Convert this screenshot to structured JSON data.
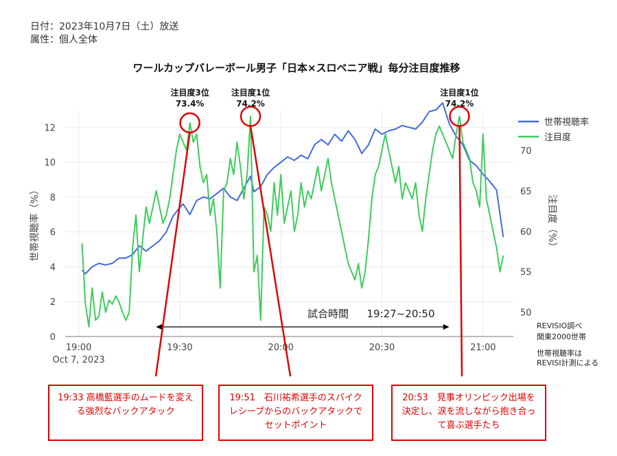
{
  "header": {
    "date_line": "日付：2023年10月7日（土）放送",
    "attr_line": "属性：個人全体"
  },
  "chart_data": {
    "type": "line",
    "title": "ワールカップバレーボール男子「日本×スロベニア戦」毎分注目度推移",
    "x_ticks": [
      "19:00",
      "19:30",
      "20:00",
      "20:30",
      "21:00"
    ],
    "x_date_label": "Oct 7, 2023",
    "x_range": [
      "18:56",
      "21:09"
    ],
    "ylabel_left": "世帯視聴率（%）",
    "ylabel_right": "注目度（%）",
    "ylim_left": [
      0,
      13
    ],
    "ylim_right": [
      47,
      75
    ],
    "yticks_left": [
      0,
      2,
      4,
      6,
      8,
      10,
      12
    ],
    "yticks_right": [
      50,
      55,
      60,
      65,
      70
    ],
    "legend_position": "top-right",
    "grid": true,
    "series": [
      {
        "name": "世帯視聴率",
        "axis": "left",
        "color": "#4169e1",
        "points": [
          [
            "19:01",
            3.8
          ],
          [
            "19:02",
            3.6
          ],
          [
            "19:04",
            4.0
          ],
          [
            "19:06",
            4.2
          ],
          [
            "19:08",
            4.1
          ],
          [
            "19:10",
            4.2
          ],
          [
            "19:12",
            4.5
          ],
          [
            "19:14",
            4.5
          ],
          [
            "19:16",
            4.7
          ],
          [
            "19:18",
            5.2
          ],
          [
            "19:20",
            4.9
          ],
          [
            "19:22",
            5.2
          ],
          [
            "19:24",
            5.5
          ],
          [
            "19:26",
            6.0
          ],
          [
            "19:28",
            6.9
          ],
          [
            "19:30",
            7.4
          ],
          [
            "19:31",
            7.6
          ],
          [
            "19:33",
            7.0
          ],
          [
            "19:35",
            7.8
          ],
          [
            "19:37",
            8.0
          ],
          [
            "19:39",
            7.9
          ],
          [
            "19:41",
            8.2
          ],
          [
            "19:43",
            8.5
          ],
          [
            "19:45",
            8.0
          ],
          [
            "19:47",
            7.8
          ],
          [
            "19:49",
            8.5
          ],
          [
            "19:51",
            9.2
          ],
          [
            "19:52",
            8.3
          ],
          [
            "19:54",
            8.6
          ],
          [
            "19:56",
            9.3
          ],
          [
            "19:58",
            9.7
          ],
          [
            "20:00",
            10.0
          ],
          [
            "20:02",
            10.3
          ],
          [
            "20:04",
            10.1
          ],
          [
            "20:06",
            10.4
          ],
          [
            "20:08",
            10.2
          ],
          [
            "20:10",
            11.0
          ],
          [
            "20:12",
            11.3
          ],
          [
            "20:14",
            11.0
          ],
          [
            "20:16",
            11.6
          ],
          [
            "20:18",
            11.2
          ],
          [
            "20:20",
            11.8
          ],
          [
            "20:22",
            11.3
          ],
          [
            "20:24",
            10.5
          ],
          [
            "20:26",
            11.0
          ],
          [
            "20:28",
            11.9
          ],
          [
            "20:30",
            11.6
          ],
          [
            "20:32",
            11.8
          ],
          [
            "20:34",
            11.9
          ],
          [
            "20:36",
            12.1
          ],
          [
            "20:38",
            12.0
          ],
          [
            "20:40",
            11.9
          ],
          [
            "20:42",
            12.3
          ],
          [
            "20:44",
            12.9
          ],
          [
            "20:46",
            13.0
          ],
          [
            "20:48",
            13.4
          ],
          [
            "20:50",
            12.2
          ],
          [
            "20:52",
            11.5
          ],
          [
            "20:54",
            11.0
          ],
          [
            "20:56",
            10.1
          ],
          [
            "20:58",
            9.8
          ],
          [
            "21:00",
            9.3
          ],
          [
            "21:02",
            8.9
          ],
          [
            "21:04",
            8.4
          ],
          [
            "21:06",
            5.7
          ]
        ]
      },
      {
        "name": "注目度",
        "axis": "right",
        "color": "#3ccc5a",
        "points": [
          [
            "19:01",
            58.5
          ],
          [
            "19:02",
            51.0
          ],
          [
            "19:03",
            48.2
          ],
          [
            "19:04",
            53.0
          ],
          [
            "19:05",
            49.0
          ],
          [
            "19:06",
            49.5
          ],
          [
            "19:07",
            52.5
          ],
          [
            "19:08",
            50.0
          ],
          [
            "19:09",
            51.5
          ],
          [
            "19:10",
            51.0
          ],
          [
            "19:11",
            52.0
          ],
          [
            "19:12",
            51.2
          ],
          [
            "19:13",
            50.0
          ],
          [
            "19:14",
            49.0
          ],
          [
            "19:15",
            50.0
          ],
          [
            "19:16",
            58.0
          ],
          [
            "19:17",
            62.0
          ],
          [
            "19:18",
            55.0
          ],
          [
            "19:19",
            59.0
          ],
          [
            "19:20",
            63.0
          ],
          [
            "19:21",
            61.0
          ],
          [
            "19:22",
            63.0
          ],
          [
            "19:23",
            65.0
          ],
          [
            "19:24",
            63.0
          ],
          [
            "19:25",
            61.0
          ],
          [
            "19:26",
            62.0
          ],
          [
            "19:27",
            64.0
          ],
          [
            "19:28",
            67.0
          ],
          [
            "19:29",
            70.0
          ],
          [
            "19:30",
            72.0
          ],
          [
            "19:31",
            71.0
          ],
          [
            "19:32",
            70.0
          ],
          [
            "19:33",
            73.4
          ],
          [
            "19:34",
            71.0
          ],
          [
            "19:35",
            72.0
          ],
          [
            "19:36",
            68.0
          ],
          [
            "19:37",
            66.0
          ],
          [
            "19:38",
            67.0
          ],
          [
            "19:39",
            62.0
          ],
          [
            "19:40",
            64.0
          ],
          [
            "19:41",
            60.0
          ],
          [
            "19:42",
            53.0
          ],
          [
            "19:43",
            65.0
          ],
          [
            "19:44",
            66.0
          ],
          [
            "19:45",
            69.0
          ],
          [
            "19:46",
            67.0
          ],
          [
            "19:47",
            71.0
          ],
          [
            "19:48",
            68.0
          ],
          [
            "19:49",
            64.0
          ],
          [
            "19:50",
            67.0
          ],
          [
            "19:51",
            74.2
          ],
          [
            "19:52",
            55.0
          ],
          [
            "19:53",
            57.0
          ],
          [
            "19:54",
            49.0
          ],
          [
            "19:55",
            63.0
          ],
          [
            "19:56",
            62.0
          ],
          [
            "19:57",
            60.0
          ],
          [
            "19:58",
            66.0
          ],
          [
            "19:59",
            62.0
          ],
          [
            "20:00",
            67.0
          ],
          [
            "20:01",
            61.0
          ],
          [
            "20:02",
            63.0
          ],
          [
            "20:03",
            65.0
          ],
          [
            "20:04",
            60.0
          ],
          [
            "20:05",
            62.0
          ],
          [
            "20:06",
            66.0
          ],
          [
            "20:07",
            63.0
          ],
          [
            "20:08",
            65.0
          ],
          [
            "20:09",
            64.0
          ],
          [
            "20:10",
            66.0
          ],
          [
            "20:11",
            68.0
          ],
          [
            "20:12",
            65.0
          ],
          [
            "20:13",
            67.0
          ],
          [
            "20:14",
            69.0
          ],
          [
            "20:15",
            66.0
          ],
          [
            "20:16",
            64.0
          ],
          [
            "20:17",
            62.0
          ],
          [
            "20:18",
            60.0
          ],
          [
            "20:19",
            58.0
          ],
          [
            "20:20",
            56.0
          ],
          [
            "20:21",
            55.0
          ],
          [
            "20:22",
            54.0
          ],
          [
            "20:23",
            56.0
          ],
          [
            "20:24",
            53.0
          ],
          [
            "20:25",
            55.0
          ],
          [
            "20:26",
            59.0
          ],
          [
            "20:27",
            64.0
          ],
          [
            "20:28",
            67.0
          ],
          [
            "20:29",
            68.0
          ],
          [
            "20:30",
            70.0
          ],
          [
            "20:31",
            72.0
          ],
          [
            "20:32",
            70.0
          ],
          [
            "20:33",
            68.0
          ],
          [
            "20:34",
            66.0
          ],
          [
            "20:35",
            68.0
          ],
          [
            "20:36",
            64.0
          ],
          [
            "20:37",
            66.0
          ],
          [
            "20:38",
            65.0
          ],
          [
            "20:39",
            64.0
          ],
          [
            "20:40",
            66.0
          ],
          [
            "20:41",
            62.0
          ],
          [
            "20:42",
            60.0
          ],
          [
            "20:43",
            64.0
          ],
          [
            "20:44",
            67.0
          ],
          [
            "20:45",
            70.0
          ],
          [
            "20:46",
            72.0
          ],
          [
            "20:47",
            73.0
          ],
          [
            "20:48",
            72.0
          ],
          [
            "20:49",
            71.0
          ],
          [
            "20:50",
            70.0
          ],
          [
            "20:51",
            69.0
          ],
          [
            "20:52",
            72.0
          ],
          [
            "20:53",
            74.2
          ],
          [
            "20:54",
            71.0
          ],
          [
            "20:55",
            70.0
          ],
          [
            "20:56",
            69.0
          ],
          [
            "20:57",
            66.0
          ],
          [
            "20:58",
            65.0
          ],
          [
            "20:59",
            63.0
          ],
          [
            "21:00",
            72.0
          ],
          [
            "21:01",
            64.0
          ],
          [
            "21:02",
            62.0
          ],
          [
            "21:03",
            60.0
          ],
          [
            "21:04",
            58.0
          ],
          [
            "21:05",
            55.0
          ],
          [
            "21:06",
            57.0
          ]
        ]
      }
    ],
    "peaks": [
      {
        "label": "注目度3位",
        "value": "73.4%",
        "time": "19:33"
      },
      {
        "label": "注目度1位",
        "value": "74.2%",
        "time": "19:51"
      },
      {
        "label": "注目度1位",
        "value": "74.2%",
        "time": "20:53"
      }
    ],
    "match_span": {
      "label": "試合時間",
      "range": "19:27~20:50",
      "start": "19:27",
      "end": "20:50"
    },
    "annotations": [
      {
        "time": "19:33",
        "text": "19:33 高橋藍選手のムードを変える強烈なバックアタック"
      },
      {
        "time": "19:51",
        "text": "19:51　石川祐希選手のスパイクレシーブからのバックアタックでセットポイント"
      },
      {
        "time": "20:53",
        "text": "20:53　見事オリンピック出場を決定し、涙を流しながら抱き合って喜ぶ選手たち"
      }
    ]
  },
  "notes": {
    "source": "REVISIO調べ",
    "region": "関東2000世帯",
    "basis": "世帯視聴率は REVISI計測による"
  }
}
